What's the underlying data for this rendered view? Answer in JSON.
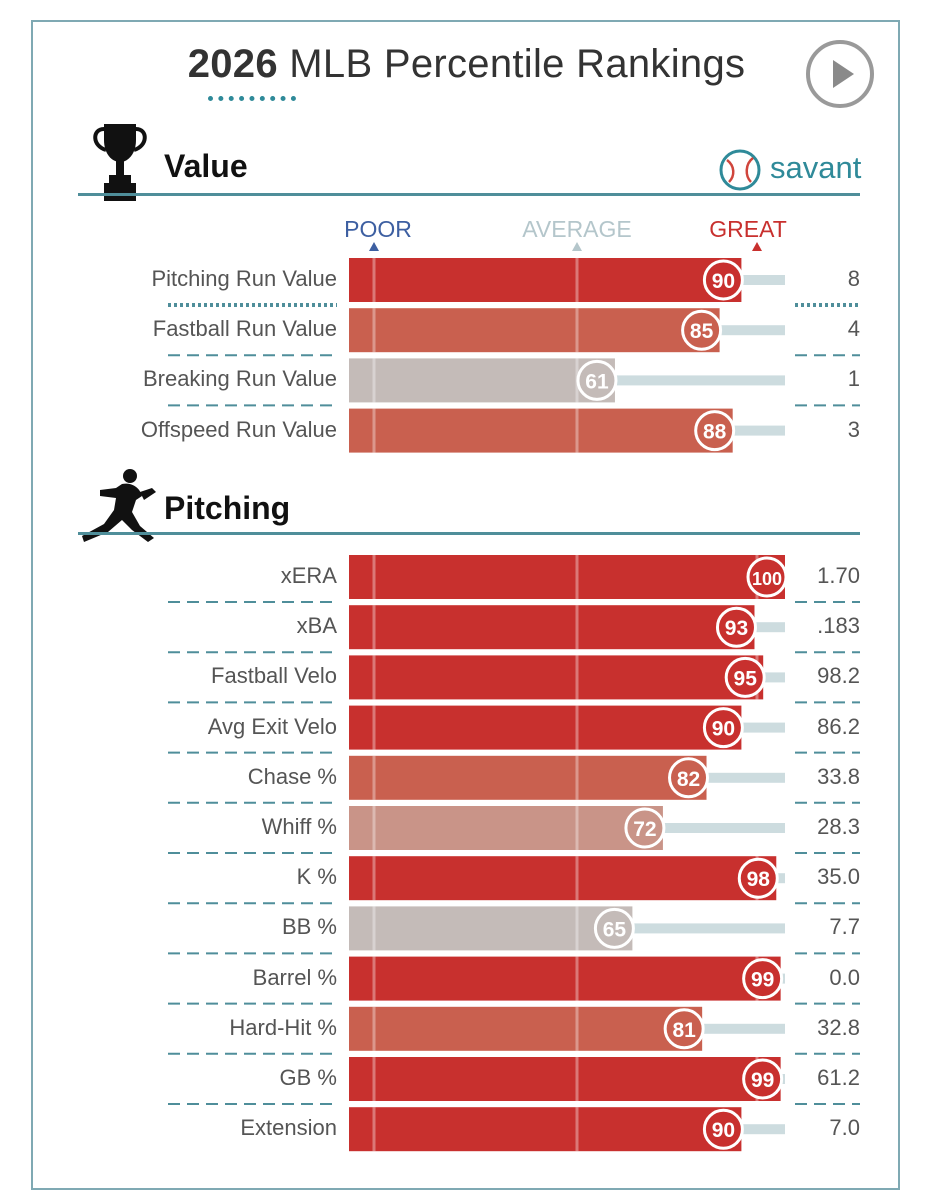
{
  "header": {
    "year": "2026",
    "title_rest": "MLB Percentile Rankings"
  },
  "scale": {
    "poor": "POOR",
    "average": "AVERAGE",
    "great": "GREAT"
  },
  "brand": {
    "savant": "savant"
  },
  "colors": {
    "great": "#c8302e",
    "good": "#c9604f",
    "average": "#c4bbb8",
    "line": "#4f8e9a",
    "track": "#cddcdf"
  },
  "chart_data": [
    {
      "type": "bar",
      "title": "Value",
      "xlim": [
        0,
        100
      ],
      "categories": [
        "Pitching Run Value",
        "Fastball Run Value",
        "Breaking Run Value",
        "Offspeed Run Value"
      ],
      "values": [
        90,
        85,
        61,
        88
      ],
      "stat_values": [
        "8",
        "4",
        "1",
        "3"
      ]
    },
    {
      "type": "bar",
      "title": "Pitching",
      "xlim": [
        0,
        100
      ],
      "categories": [
        "xERA",
        "xBA",
        "Fastball Velo",
        "Avg Exit Velo",
        "Chase %",
        "Whiff %",
        "K %",
        "BB %",
        "Barrel %",
        "Hard-Hit %",
        "GB %",
        "Extension"
      ],
      "values": [
        100,
        93,
        95,
        90,
        82,
        72,
        98,
        65,
        99,
        81,
        99,
        90
      ],
      "stat_values": [
        "1.70",
        ".183",
        "98.2",
        "86.2",
        "33.8",
        "28.3",
        "35.0",
        "7.7",
        "0.0",
        "32.8",
        "61.2",
        "7.0"
      ]
    }
  ]
}
